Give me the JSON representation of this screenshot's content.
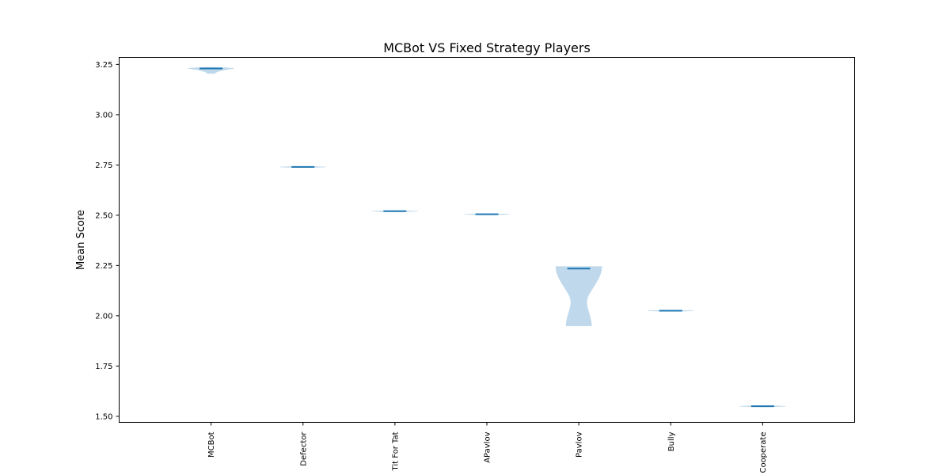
{
  "chart_data": {
    "type": "violin",
    "title": "MCBot VS Fixed Strategy Players",
    "xlabel": "",
    "ylabel": "Mean Score",
    "ylim": [
      1.47,
      3.285
    ],
    "yticks": [
      1.5,
      1.75,
      2.0,
      2.25,
      2.5,
      2.75,
      3.0,
      3.25
    ],
    "ytick_labels": [
      "1.50",
      "1.75",
      "2.00",
      "2.25",
      "2.50",
      "2.75",
      "3.00",
      "3.25"
    ],
    "categories": [
      "MCBot",
      "Defector",
      "Tit For Tat",
      "APavlov",
      "Pavlov",
      "Bully",
      "Cooperate"
    ],
    "x_label_rotation": "vertical",
    "grid": false,
    "legend": "none",
    "colors": {
      "body": "#bcd6ea",
      "median": "#1f77b4",
      "axes": "#000000"
    },
    "series": [
      {
        "category": "MCBot",
        "median": 3.23,
        "min": 3.205,
        "max": 3.235
      },
      {
        "category": "Defector",
        "median": 2.74,
        "min": 2.739,
        "max": 2.741
      },
      {
        "category": "Tit For Tat",
        "median": 2.52,
        "min": 2.519,
        "max": 2.521
      },
      {
        "category": "APavlov",
        "median": 2.505,
        "min": 2.503,
        "max": 2.507
      },
      {
        "category": "Pavlov",
        "median": 2.235,
        "min": 1.95,
        "max": 2.245
      },
      {
        "category": "Bully",
        "median": 2.025,
        "min": 2.024,
        "max": 2.026
      },
      {
        "category": "Cooperate",
        "median": 1.55,
        "min": 1.549,
        "max": 1.551
      }
    ]
  }
}
